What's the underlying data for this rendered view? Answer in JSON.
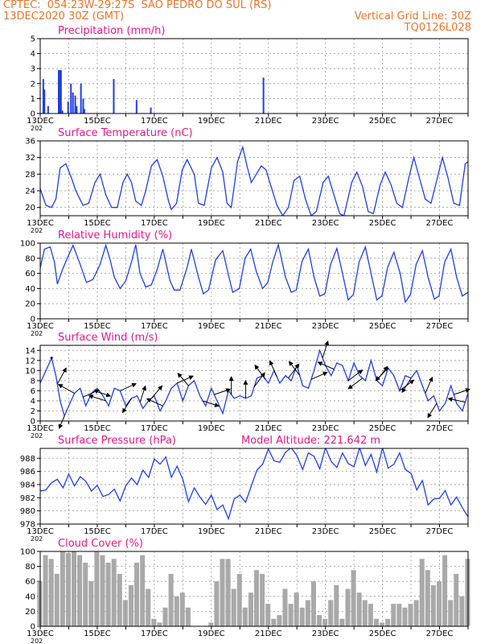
{
  "header": {
    "line1_left": "CPTEC:  054:23W-29:27S  SAO PEDRO DO SUL (RS)",
    "line2_left": "13DEC2020 30Z (GMT)",
    "line2_right": "Vertical Grid Line: 30Z",
    "line3_right": "TQ0126L028",
    "model_altitude": "Model Altitude: 221.642 m"
  },
  "colors": {
    "header": "#e8742a",
    "title": "#e0188a",
    "line": "#1f3fe0",
    "cloud": "#a9a9a9",
    "wind": "#000000",
    "grid": "#999999"
  },
  "date_labels": [
    "13DEC",
    "15DEC",
    "17DEC",
    "19DEC",
    "21DEC",
    "23DEC",
    "25DEC",
    "27DEC"
  ],
  "year_stub": "202",
  "chart_data": [
    {
      "id": "precip",
      "type": "bar",
      "title": "Precipitation (mm/h)",
      "ylim": [
        0,
        5
      ],
      "yticks": [
        "0",
        "1",
        "2",
        "3",
        "4",
        "5"
      ],
      "xlim_days": [
        13.0,
        28.0
      ],
      "x": [
        13.08,
        13.12,
        13.25,
        13.62,
        13.66,
        13.7,
        13.75,
        13.95,
        14.05,
        14.12,
        14.2,
        14.25,
        14.4,
        14.48,
        14.52,
        15.55,
        16.35,
        16.85,
        20.8
      ],
      "values": [
        2.3,
        1.6,
        0.5,
        2.9,
        2.9,
        2.9,
        0.2,
        0.8,
        2.0,
        1.4,
        1.2,
        0.5,
        2.0,
        1.0,
        0.3,
        2.3,
        0.9,
        0.4,
        2.4
      ]
    },
    {
      "id": "temp",
      "type": "line",
      "title": "Surface Temperature (nC)",
      "ylim": [
        18,
        36
      ],
      "yticks": [
        "20",
        "24",
        "28",
        "32",
        "36"
      ],
      "x": [
        13.0,
        13.2,
        13.4,
        13.55,
        13.7,
        13.9,
        14.1,
        14.25,
        14.5,
        14.7,
        14.92,
        15.1,
        15.3,
        15.5,
        15.7,
        15.9,
        16.05,
        16.2,
        16.35,
        16.55,
        16.7,
        16.9,
        17.1,
        17.3,
        17.5,
        17.6,
        17.78,
        17.98,
        18.15,
        18.4,
        18.55,
        18.75,
        19.0,
        19.2,
        19.4,
        19.55,
        19.7,
        19.92,
        20.1,
        20.25,
        20.4,
        20.58,
        20.75,
        20.92,
        21.05,
        21.3,
        21.5,
        21.7,
        21.9,
        22.1,
        22.3,
        22.5,
        22.68,
        22.92,
        23.1,
        23.3,
        23.5,
        23.65,
        23.92,
        24.1,
        24.3,
        24.5,
        24.68,
        24.92,
        25.1,
        25.3,
        25.5,
        25.7,
        25.92,
        26.1,
        26.3,
        26.5,
        26.7,
        26.92,
        27.1,
        27.3,
        27.5,
        27.7,
        27.9,
        28.0
      ],
      "values": [
        24.5,
        20.5,
        20,
        22,
        29.5,
        30.5,
        27,
        24,
        20.5,
        21,
        26,
        28,
        23,
        20,
        20,
        26,
        28,
        26,
        21.5,
        20.5,
        24,
        30,
        31.5,
        27.5,
        21.5,
        19.5,
        21,
        29,
        31.5,
        28,
        21,
        20.5,
        29.5,
        32,
        28.5,
        21,
        20,
        31,
        34.5,
        30,
        26,
        28,
        30,
        29,
        26,
        20.5,
        18,
        20,
        26.5,
        27.5,
        22,
        18,
        19,
        26,
        27.5,
        23,
        18.5,
        18,
        26,
        28.5,
        25,
        19,
        18.5,
        25.5,
        28.5,
        25.5,
        21,
        20,
        27,
        32,
        27,
        22,
        21,
        27,
        32,
        27,
        21,
        20.5,
        30.5,
        31
      ]
    },
    {
      "id": "rh",
      "type": "line",
      "title": "Relative Humidity (%)",
      "ylim": [
        0,
        100
      ],
      "yticks": [
        "0",
        "20",
        "40",
        "60",
        "80",
        "100"
      ],
      "x": [
        13.0,
        13.15,
        13.35,
        13.5,
        13.6,
        13.78,
        13.95,
        14.15,
        14.4,
        14.62,
        14.85,
        15.1,
        15.3,
        15.45,
        15.6,
        15.8,
        16.0,
        16.2,
        16.35,
        16.5,
        16.7,
        16.9,
        17.1,
        17.3,
        17.55,
        17.7,
        17.9,
        18.15,
        18.3,
        18.55,
        18.72,
        18.9,
        19.15,
        19.4,
        19.6,
        19.75,
        19.98,
        20.18,
        20.38,
        20.58,
        20.8,
        20.98,
        21.15,
        21.35,
        21.6,
        21.8,
        21.98,
        22.18,
        22.4,
        22.6,
        22.8,
        22.98,
        23.18,
        23.4,
        23.6,
        23.8,
        23.98,
        24.18,
        24.4,
        24.6,
        24.8,
        24.98,
        25.18,
        25.4,
        25.62,
        25.8,
        25.98,
        26.18,
        26.4,
        26.6,
        26.82,
        26.98,
        27.18,
        27.4,
        27.6,
        27.8,
        28.0
      ],
      "values": [
        67,
        92,
        95,
        75,
        46,
        65,
        80,
        97,
        72,
        48,
        52,
        72,
        97,
        78,
        55,
        40,
        50,
        75,
        98,
        60,
        42,
        45,
        65,
        92,
        50,
        38,
        38,
        68,
        92,
        55,
        33,
        38,
        78,
        90,
        58,
        35,
        40,
        80,
        92,
        62,
        40,
        48,
        75,
        98,
        55,
        35,
        38,
        76,
        92,
        55,
        30,
        33,
        72,
        93,
        60,
        25,
        32,
        75,
        95,
        60,
        25,
        30,
        68,
        88,
        60,
        22,
        32,
        72,
        90,
        55,
        26,
        30,
        75,
        92,
        55,
        30,
        35
      ]
    },
    {
      "id": "wind",
      "type": "line",
      "title": "Surface Wind (m/s)",
      "ylim": [
        0,
        15
      ],
      "yticks": [
        "0",
        "2",
        "4",
        "6",
        "8",
        "10",
        "12",
        "14"
      ],
      "x": [
        13.0,
        13.2,
        13.4,
        13.55,
        13.7,
        13.85,
        14.0,
        14.2,
        14.4,
        14.6,
        14.8,
        15.0,
        15.2,
        15.4,
        15.6,
        15.8,
        16.0,
        16.2,
        16.4,
        16.6,
        16.8,
        17.0,
        17.2,
        17.4,
        17.6,
        17.8,
        18.0,
        18.2,
        18.4,
        18.6,
        18.8,
        19.0,
        19.2,
        19.4,
        19.6,
        19.8,
        20.0,
        20.2,
        20.4,
        20.6,
        20.8,
        21.0,
        21.2,
        21.4,
        21.6,
        21.8,
        22.0,
        22.2,
        22.4,
        22.6,
        22.8,
        23.0,
        23.2,
        23.4,
        23.6,
        23.8,
        24.0,
        24.2,
        24.4,
        24.6,
        24.8,
        25.0,
        25.2,
        25.4,
        25.6,
        25.8,
        26.0,
        26.2,
        26.4,
        26.6,
        26.8,
        27.0,
        27.2,
        27.4,
        27.6,
        27.8,
        28.0
      ],
      "values": [
        7.5,
        10,
        12.5,
        9,
        4,
        1,
        3,
        5.5,
        6.5,
        3,
        5.5,
        6.5,
        5,
        3,
        6.5,
        6,
        3,
        4.5,
        5,
        2.5,
        4,
        5,
        2,
        4,
        6.5,
        7.5,
        4,
        7,
        8,
        5,
        3,
        6.5,
        4,
        1.5,
        6,
        4.5,
        5,
        4.5,
        5,
        8.5,
        9,
        7.5,
        10,
        7.5,
        9,
        8,
        11,
        7,
        6.5,
        10,
        14,
        11,
        9,
        11.5,
        11,
        8,
        11.5,
        9,
        8,
        12,
        8,
        7,
        10.5,
        9,
        6,
        9,
        8.5,
        10,
        7,
        4,
        5,
        2,
        3.5,
        7,
        3.5,
        2,
        5.5
      ]
    },
    {
      "id": "pres",
      "type": "line",
      "title": "Surface Pressure (hPa)",
      "ylim": [
        978,
        989.5
      ],
      "yticks": [
        "978",
        "980",
        "982",
        "984",
        "986",
        "988"
      ],
      "x": [
        13.0,
        13.2,
        13.4,
        13.6,
        13.8,
        14.0,
        14.2,
        14.4,
        14.6,
        14.8,
        15.0,
        15.2,
        15.4,
        15.6,
        15.8,
        16.0,
        16.2,
        16.4,
        16.6,
        16.8,
        17.0,
        17.2,
        17.4,
        17.6,
        17.8,
        18.0,
        18.2,
        18.4,
        18.6,
        18.8,
        19.0,
        19.2,
        19.4,
        19.6,
        19.8,
        20.0,
        20.2,
        20.4,
        20.6,
        20.8,
        21.0,
        21.2,
        21.4,
        21.6,
        21.8,
        22.0,
        22.2,
        22.4,
        22.6,
        22.8,
        23.0,
        23.2,
        23.4,
        23.6,
        23.8,
        24.0,
        24.2,
        24.4,
        24.6,
        24.8,
        25.0,
        25.2,
        25.4,
        25.6,
        25.8,
        26.0,
        26.2,
        26.4,
        26.6,
        26.8,
        27.0,
        27.2,
        27.4,
        27.6,
        27.8,
        28.0
      ],
      "values": [
        983,
        983.2,
        984.3,
        984.8,
        983.5,
        985.6,
        983.8,
        985.2,
        984.5,
        983,
        983.9,
        982.2,
        982.5,
        983.3,
        981.5,
        983.8,
        985,
        984,
        986.2,
        985.1,
        987.9,
        987.1,
        988.2,
        985.1,
        986.8,
        984.8,
        981.4,
        983.5,
        982.1,
        981,
        982.4,
        980.2,
        980.9,
        978.8,
        981.8,
        982.4,
        981.3,
        983.8,
        986.2,
        987.1,
        989.4,
        987.6,
        987.4,
        988.9,
        989.6,
        988.4,
        986.3,
        988.8,
        988.3,
        986.4,
        989.6,
        987.5,
        986.6,
        988.8,
        987.2,
        986.7,
        989.6,
        986.9,
        988.6,
        985.9,
        989.6,
        986.5,
        987.1,
        988.8,
        986.3,
        985.7,
        983.2,
        984.6,
        980.9,
        981.8,
        981.9,
        983.1,
        980.9,
        982.1,
        980.5,
        979.1
      ]
    },
    {
      "id": "cloud",
      "type": "bar",
      "title": "Cloud Cover (%)",
      "ylim": [
        0,
        100
      ],
      "yticks": [
        "0",
        "20",
        "40",
        "60",
        "80",
        "100"
      ],
      "x": [
        13.0,
        13.2,
        13.4,
        13.6,
        13.8,
        14.0,
        14.2,
        14.4,
        14.6,
        14.8,
        15.0,
        15.2,
        15.4,
        15.6,
        15.8,
        16.0,
        16.2,
        16.4,
        16.6,
        16.8,
        17.0,
        17.2,
        17.4,
        17.6,
        17.8,
        18.0,
        18.2,
        18.4,
        18.6,
        18.8,
        19.0,
        19.2,
        19.4,
        19.6,
        19.8,
        20.0,
        20.2,
        20.4,
        20.6,
        20.8,
        21.0,
        21.2,
        21.4,
        21.6,
        21.8,
        22.0,
        22.2,
        22.4,
        22.6,
        22.8,
        23.0,
        23.2,
        23.4,
        23.6,
        23.8,
        24.0,
        24.2,
        24.4,
        24.6,
        24.8,
        25.0,
        25.2,
        25.4,
        25.6,
        25.8,
        26.0,
        26.2,
        26.4,
        26.6,
        26.8,
        27.0,
        27.2,
        27.4,
        27.6,
        27.8,
        28.0
      ],
      "values": [
        60,
        95,
        90,
        70,
        100,
        98,
        100,
        95,
        85,
        60,
        100,
        95,
        85,
        90,
        70,
        35,
        55,
        85,
        95,
        50,
        10,
        5,
        25,
        70,
        40,
        45,
        25,
        0,
        0,
        0,
        5,
        60,
        90,
        90,
        50,
        70,
        25,
        45,
        75,
        70,
        30,
        10,
        15,
        50,
        30,
        45,
        25,
        35,
        60,
        15,
        10,
        35,
        55,
        10,
        50,
        75,
        45,
        35,
        30,
        10,
        5,
        10,
        30,
        30,
        25,
        30,
        35,
        90,
        75,
        55,
        60,
        95,
        35,
        70,
        40,
        90
      ]
    }
  ],
  "wind_barbs": [
    {
      "day": 13.4,
      "u": 0.0,
      "v": 0.0
    },
    {
      "day": 13.6,
      "u": 0.5,
      "v": 0.9
    },
    {
      "day": 13.85,
      "u": -0.3,
      "v": -0.7
    },
    {
      "day": 14.2,
      "u": -0.9,
      "v": 0.5
    },
    {
      "day": 14.5,
      "u": 0.9,
      "v": 0.4
    },
    {
      "day": 14.9,
      "u": 0.9,
      "v": -0.3
    },
    {
      "day": 15.3,
      "u": -0.95,
      "v": 0.3
    },
    {
      "day": 15.8,
      "u": 0.9,
      "v": 0.4
    },
    {
      "day": 16.2,
      "u": -0.5,
      "v": -0.8
    },
    {
      "day": 16.5,
      "u": 0.3,
      "v": 0.9
    },
    {
      "day": 16.9,
      "u": 0.6,
      "v": 0.7
    },
    {
      "day": 17.3,
      "u": -0.9,
      "v": 0.4
    },
    {
      "day": 17.8,
      "u": 0.9,
      "v": 0.4
    },
    {
      "day": 18.2,
      "u": -0.6,
      "v": 0.7
    },
    {
      "day": 18.7,
      "u": 0.9,
      "v": -0.3
    },
    {
      "day": 19.1,
      "u": 0.9,
      "v": 0.3
    },
    {
      "day": 19.7,
      "u": 0.0,
      "v": 1.0
    },
    {
      "day": 20.2,
      "u": 0.0,
      "v": 1.0
    },
    {
      "day": 20.5,
      "u": 0.6,
      "v": 0.8
    },
    {
      "day": 20.9,
      "u": -0.6,
      "v": 0.8
    },
    {
      "day": 21.3,
      "u": -0.4,
      "v": 0.9
    },
    {
      "day": 21.7,
      "u": 0.6,
      "v": 0.8
    },
    {
      "day": 22.1,
      "u": -0.6,
      "v": 0.8
    },
    {
      "day": 22.5,
      "u": 0.9,
      "v": 0.4
    },
    {
      "day": 22.9,
      "u": 0.3,
      "v": 0.95
    },
    {
      "day": 23.3,
      "u": -0.9,
      "v": 0.4
    },
    {
      "day": 23.8,
      "u": 0.8,
      "v": 0.6
    },
    {
      "day": 24.3,
      "u": -0.8,
      "v": -0.6
    },
    {
      "day": 24.8,
      "u": 0.6,
      "v": 0.8
    },
    {
      "day": 25.2,
      "u": -0.7,
      "v": -0.7
    },
    {
      "day": 25.6,
      "u": 0.8,
      "v": 0.6
    },
    {
      "day": 26.0,
      "u": -0.5,
      "v": -0.8
    },
    {
      "day": 26.5,
      "u": 0.4,
      "v": 0.9
    },
    {
      "day": 26.9,
      "u": -0.5,
      "v": -0.8
    },
    {
      "day": 27.5,
      "u": 0.9,
      "v": 0.3
    },
    {
      "day": 27.9,
      "u": -0.95,
      "v": 0.2
    }
  ]
}
